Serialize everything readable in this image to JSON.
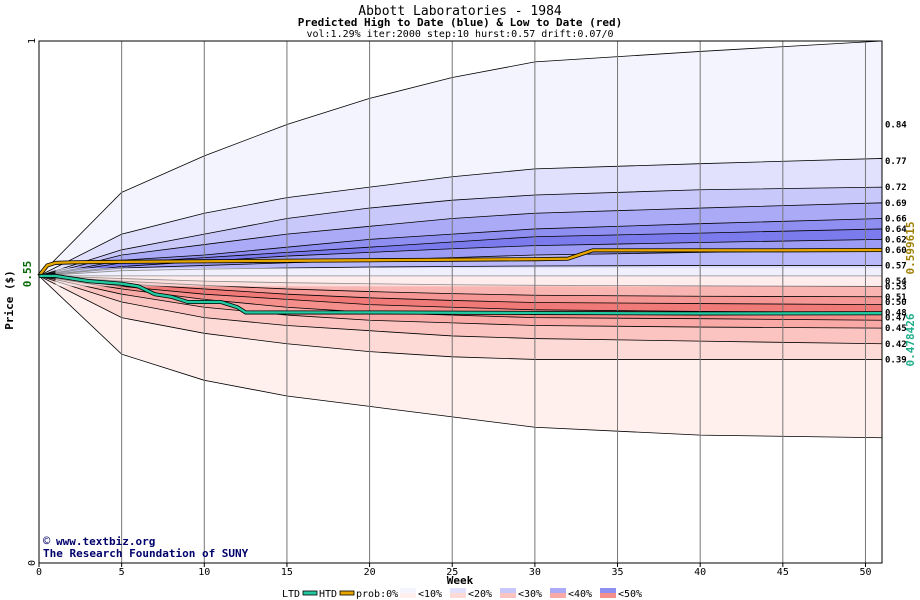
{
  "chart_data": {
    "type": "area",
    "title": "Abbott Laboratories - 1984",
    "subtitle": "Predicted High to Date (blue) &  Low to Date (red)",
    "params": "vol:1.29% iter:2000 step:10 hurst:0.57 drift:0.07/0",
    "xlabel": "Week",
    "ylabel": "Price ($)",
    "xlim": [
      0,
      51
    ],
    "ylim": [
      0,
      1
    ],
    "x_ticks": [
      0,
      5,
      10,
      15,
      20,
      25,
      30,
      35,
      40,
      45,
      50
    ],
    "y_ticks": [
      0,
      1
    ],
    "start_price": 0.55,
    "start_price_label": "0.55",
    "grid": true,
    "high_bands": [
      {
        "level": "<10%",
        "values": [
          0.55,
          0.71,
          0.78,
          0.84,
          0.89,
          0.93,
          0.96,
          0.98,
          1.0
        ]
      },
      {
        "level": "<20%",
        "values": [
          0.55,
          0.63,
          0.67,
          0.7,
          0.72,
          0.74,
          0.755,
          0.765,
          0.775
        ]
      },
      {
        "level": "<30%",
        "values": [
          0.55,
          0.6,
          0.63,
          0.66,
          0.68,
          0.695,
          0.705,
          0.715,
          0.72
        ]
      },
      {
        "level": "<40%",
        "values": [
          0.55,
          0.59,
          0.61,
          0.63,
          0.645,
          0.66,
          0.67,
          0.68,
          0.69
        ]
      },
      {
        "level": "<50%",
        "values": [
          0.55,
          0.58,
          0.59,
          0.605,
          0.62,
          0.63,
          0.64,
          0.65,
          0.66
        ]
      },
      {
        "level": "<50%",
        "values": [
          0.55,
          0.575,
          0.585,
          0.595,
          0.605,
          0.615,
          0.625,
          0.632,
          0.64
        ]
      },
      {
        "level": "<40%",
        "values": [
          0.55,
          0.568,
          0.578,
          0.588,
          0.595,
          0.602,
          0.608,
          0.614,
          0.62
        ]
      },
      {
        "level": "<30%",
        "values": [
          0.55,
          0.565,
          0.57,
          0.575,
          0.58,
          0.585,
          0.59,
          0.595,
          0.6
        ]
      },
      {
        "level": "<20%",
        "values": [
          0.55,
          0.56,
          0.563,
          0.565,
          0.567,
          0.568,
          0.569,
          0.57,
          0.57
        ]
      }
    ],
    "low_bands": [
      {
        "level": "<10%",
        "values": [
          0.55,
          0.4,
          0.35,
          0.32,
          0.3,
          0.28,
          0.26,
          0.245,
          0.24
        ]
      },
      {
        "level": "<20%",
        "values": [
          0.55,
          0.47,
          0.44,
          0.42,
          0.405,
          0.395,
          0.39,
          0.39,
          0.39
        ]
      },
      {
        "level": "<30%",
        "values": [
          0.55,
          0.5,
          0.47,
          0.455,
          0.445,
          0.435,
          0.43,
          0.425,
          0.42
        ]
      },
      {
        "level": "<40%",
        "values": [
          0.55,
          0.515,
          0.49,
          0.475,
          0.465,
          0.46,
          0.455,
          0.452,
          0.45
        ]
      },
      {
        "level": "<50%",
        "values": [
          0.55,
          0.525,
          0.505,
          0.49,
          0.48,
          0.475,
          0.47,
          0.468,
          0.465
        ]
      },
      {
        "level": "<50%",
        "values": [
          0.55,
          0.53,
          0.515,
          0.505,
          0.495,
          0.49,
          0.485,
          0.482,
          0.48
        ]
      },
      {
        "level": "<40%",
        "values": [
          0.55,
          0.535,
          0.525,
          0.515,
          0.508,
          0.503,
          0.499,
          0.497,
          0.495
        ]
      },
      {
        "level": "<30%",
        "values": [
          0.55,
          0.54,
          0.532,
          0.525,
          0.52,
          0.516,
          0.513,
          0.511,
          0.51
        ]
      },
      {
        "level": "<20%",
        "values": [
          0.55,
          0.545,
          0.54,
          0.537,
          0.535,
          0.533,
          0.532,
          0.531,
          0.53
        ]
      }
    ],
    "band_x": [
      0,
      5,
      10,
      15,
      20,
      25,
      30,
      40,
      51
    ],
    "band_fill_colors": {
      "high": [
        "#f4f4ff",
        "#e1e1fd",
        "#c8c8fb",
        "#aaaaf7",
        "#8f8ff2",
        "#7b7bee",
        "#9c9cf5",
        "#b9b9f9",
        "#dcdcfd"
      ],
      "low": [
        "#fff0ee",
        "#fddad6",
        "#fbc4c0",
        "#f9aaa6",
        "#f58f8b",
        "#f07a77",
        "#f59794",
        "#f9b5b2",
        "#fdd8d6"
      ]
    },
    "htd_series": {
      "name": "HTD",
      "color": "#e6a600",
      "x": [
        0,
        0.5,
        1,
        2,
        5,
        10,
        15,
        20,
        25,
        30,
        32,
        33.5,
        35,
        40,
        45,
        51
      ],
      "y": [
        0.55,
        0.57,
        0.575,
        0.576,
        0.577,
        0.578,
        0.579,
        0.58,
        0.581,
        0.582,
        0.583,
        0.599,
        0.599,
        0.599,
        0.599,
        0.599615
      ]
    },
    "ltd_series": {
      "name": "LTD",
      "color": "#22c9a0",
      "x": [
        0,
        1,
        2,
        3,
        5,
        6,
        7,
        8,
        9,
        11,
        12,
        12.5,
        20,
        30,
        40,
        51
      ],
      "y": [
        0.55,
        0.55,
        0.545,
        0.54,
        0.535,
        0.53,
        0.515,
        0.51,
        0.5,
        0.5,
        0.49,
        0.48,
        0.48,
        0.479,
        0.478,
        0.478426
      ]
    },
    "right_labels": [
      "0.84",
      "0.77",
      "0.72",
      "0.69",
      "0.66",
      "0.64",
      "0.62",
      "0.60",
      "0.57",
      "0.54",
      "0.53",
      "0.51",
      "0.50",
      "0.48",
      "0.47",
      "0.45",
      "0.42",
      "0.39"
    ],
    "right_label_values": [
      0.84,
      0.77,
      0.72,
      0.69,
      0.66,
      0.64,
      0.62,
      0.6,
      0.57,
      0.54,
      0.53,
      0.51,
      0.5,
      0.48,
      0.47,
      0.45,
      0.42,
      0.39
    ],
    "htd_end_label": "0.599615",
    "ltd_end_label": "0.478426",
    "htd_end_color": "#a08000",
    "ltd_end_color": "#1fae8a"
  },
  "credit": {
    "site": "www.textbiz.org",
    "org": "The Research Foundation of SUNY"
  },
  "legend": {
    "ltd": "LTD",
    "htd": "HTD",
    "prob": "prob:0%",
    "items": [
      "<10%",
      "<20%",
      "<30%",
      "<40%",
      "<50%"
    ],
    "item_colors": [
      [
        "#f4f4ff",
        "#fff0ee"
      ],
      [
        "#e1e1fd",
        "#fddad6"
      ],
      [
        "#c8c8fb",
        "#fbc4c0"
      ],
      [
        "#aaaaf7",
        "#f9aaa6"
      ],
      [
        "#8f8ff2",
        "#f58f8b"
      ]
    ]
  }
}
